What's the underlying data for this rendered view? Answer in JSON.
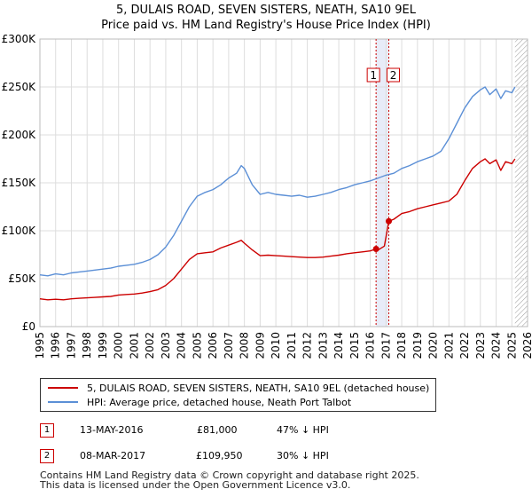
{
  "title_line1": "5, DULAIS ROAD, SEVEN SISTERS, NEATH, SA10 9EL",
  "title_line2": "Price paid vs. HM Land Registry's House Price Index (HPI)",
  "colors": {
    "price": "#cc0000",
    "hpi": "#5b8fd6",
    "marker_band": "#e8ecf8",
    "hatch": "#999999"
  },
  "chart_data": {
    "type": "line",
    "xlim": [
      1995,
      2026
    ],
    "ylim": [
      0,
      300000
    ],
    "y_ticks": [
      0,
      50000,
      100000,
      150000,
      200000,
      250000,
      300000
    ],
    "y_tick_labels": [
      "£0",
      "£50K",
      "£100K",
      "£150K",
      "£200K",
      "£250K",
      "£300K"
    ],
    "x_ticks": [
      1995,
      1996,
      1997,
      1998,
      1999,
      2000,
      2001,
      2002,
      2003,
      2004,
      2005,
      2006,
      2007,
      2008,
      2009,
      2010,
      2011,
      2012,
      2013,
      2014,
      2015,
      2016,
      2017,
      2018,
      2019,
      2020,
      2021,
      2022,
      2023,
      2024,
      2025,
      2026
    ],
    "x_tick_labels": [
      "1995",
      "1996",
      "1997",
      "1998",
      "1999",
      "2000",
      "2001",
      "2002",
      "2003",
      "2004",
      "2005",
      "2006",
      "2007",
      "2008",
      "2009",
      "2010",
      "2011",
      "2012",
      "2013",
      "2014",
      "2015",
      "2016",
      "2017",
      "2018",
      "2019",
      "2020",
      "2021",
      "2022",
      "2023",
      "2024",
      "2025",
      "2026"
    ],
    "grid": true,
    "data_end": 2025.2,
    "series": [
      {
        "name": "5, DULAIS ROAD, SEVEN SISTERS, NEATH, SA10 9EL (detached house)",
        "color": "#cc0000",
        "x": [
          1995,
          1995.5,
          1996,
          1996.5,
          1997,
          1997.5,
          1998,
          1998.5,
          1999,
          1999.5,
          2000,
          2000.5,
          2001,
          2001.5,
          2002,
          2002.5,
          2003,
          2003.5,
          2004,
          2004.5,
          2005,
          2005.5,
          2006,
          2006.5,
          2007,
          2007.5,
          2007.8,
          2008,
          2008.5,
          2009,
          2009.5,
          2010,
          2010.5,
          2011,
          2011.5,
          2012,
          2012.5,
          2013,
          2013.5,
          2014,
          2014.5,
          2015,
          2015.5,
          2016,
          2016.37,
          2016.5,
          2016.9,
          2017.18,
          2017.5,
          2018,
          2018.5,
          2019,
          2019.5,
          2020,
          2020.5,
          2021,
          2021.5,
          2022,
          2022.5,
          2023,
          2023.3,
          2023.6,
          2024,
          2024.3,
          2024.6,
          2025,
          2025.2
        ],
        "y": [
          29000,
          28000,
          28500,
          28000,
          29000,
          29500,
          30000,
          30500,
          31000,
          31500,
          33000,
          33500,
          34000,
          35000,
          36500,
          38500,
          43000,
          50000,
          60000,
          70000,
          76000,
          77000,
          78000,
          82000,
          85000,
          88000,
          90000,
          87000,
          80000,
          74000,
          74500,
          74000,
          73500,
          73000,
          72500,
          72000,
          72000,
          72500,
          73500,
          74500,
          76000,
          77000,
          78000,
          79000,
          81000,
          80000,
          84000,
          109950,
          112000,
          118000,
          120000,
          123000,
          125000,
          127000,
          129000,
          131000,
          138000,
          152000,
          165000,
          172000,
          175000,
          170000,
          174000,
          163000,
          172000,
          170000,
          175000
        ]
      },
      {
        "name": "HPI: Average price, detached house, Neath Port Talbot",
        "color": "#5b8fd6",
        "x": [
          1995,
          1995.5,
          1996,
          1996.5,
          1997,
          1997.5,
          1998,
          1998.5,
          1999,
          1999.5,
          2000,
          2000.5,
          2001,
          2001.5,
          2002,
          2002.5,
          2003,
          2003.5,
          2004,
          2004.5,
          2005,
          2005.5,
          2006,
          2006.5,
          2007,
          2007.5,
          2007.8,
          2008,
          2008.5,
          2009,
          2009.5,
          2010,
          2010.5,
          2011,
          2011.5,
          2012,
          2012.5,
          2013,
          2013.5,
          2014,
          2014.5,
          2015,
          2015.5,
          2016,
          2016.5,
          2017,
          2017.5,
          2018,
          2018.5,
          2019,
          2019.5,
          2020,
          2020.5,
          2021,
          2021.5,
          2022,
          2022.5,
          2023,
          2023.3,
          2023.6,
          2024,
          2024.3,
          2024.6,
          2025,
          2025.2
        ],
        "y": [
          54000,
          53000,
          55000,
          54000,
          56000,
          57000,
          58000,
          59000,
          60000,
          61000,
          63000,
          64000,
          65000,
          67000,
          70000,
          75000,
          83000,
          95000,
          110000,
          125000,
          136000,
          140000,
          143000,
          148000,
          155000,
          160000,
          168000,
          165000,
          148000,
          138000,
          140000,
          138000,
          137000,
          136000,
          137000,
          135000,
          136000,
          138000,
          140000,
          143000,
          145000,
          148000,
          150000,
          152000,
          155000,
          158000,
          160000,
          165000,
          168000,
          172000,
          175000,
          178000,
          183000,
          196000,
          212000,
          228000,
          240000,
          247000,
          250000,
          242000,
          248000,
          238000,
          246000,
          244000,
          250000
        ]
      }
    ],
    "transactions": [
      {
        "label": "1",
        "date": "13-MAY-2016",
        "x": 2016.37,
        "price": 81000,
        "price_label": "£81,000",
        "hpi_delta": "47% ↓ HPI"
      },
      {
        "label": "2",
        "date": "08-MAR-2017",
        "x": 2017.18,
        "price": 109950,
        "price_label": "£109,950",
        "hpi_delta": "30% ↓ HPI"
      }
    ]
  },
  "legend": {
    "items": [
      {
        "label": "5, DULAIS ROAD, SEVEN SISTERS, NEATH, SA10 9EL (detached house)",
        "color": "#cc0000"
      },
      {
        "label": "HPI: Average price, detached house, Neath Port Talbot",
        "color": "#5b8fd6"
      }
    ]
  },
  "footer": {
    "line1": "Contains HM Land Registry data © Crown copyright and database right 2025.",
    "line2": "This data is licensed under the Open Government Licence v3.0."
  }
}
